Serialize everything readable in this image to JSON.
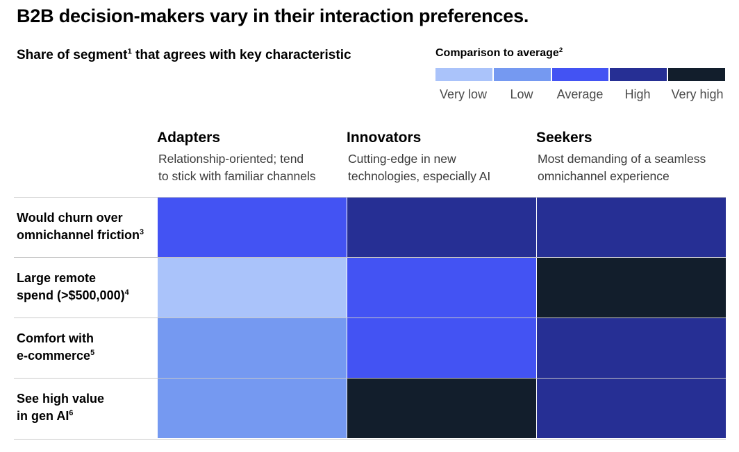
{
  "title": "B2B decision-makers vary in their interaction preferences.",
  "subtitle": {
    "text_before": "Share of segment",
    "footnote": "1",
    "text_after": " that agrees with key characteristic"
  },
  "legend": {
    "title": "Comparison to average",
    "footnote": "2",
    "levels": [
      {
        "label": "Very low",
        "color": "#aac3fa"
      },
      {
        "label": "Low",
        "color": "#7599f1"
      },
      {
        "label": "Average",
        "color": "#4353f3"
      },
      {
        "label": "High",
        "color": "#262f94"
      },
      {
        "label": "Very high",
        "color": "#121e2c"
      }
    ]
  },
  "chart_data": {
    "type": "heatmap",
    "title": "B2B decision-makers vary in their interaction preferences.",
    "subtitle": "Share of segment that agrees with key characteristic",
    "scale": [
      "Very low",
      "Low",
      "Average",
      "High",
      "Very high"
    ],
    "columns": [
      {
        "name": "Adapters",
        "description_line1": "Relationship-oriented; tend",
        "description_line2": "to stick with familiar channels"
      },
      {
        "name": "Innovators",
        "description_line1": "Cutting-edge in new",
        "description_line2": "technologies, especially AI"
      },
      {
        "name": "Seekers",
        "description_line1": "Most demanding of a seamless",
        "description_line2": "omnichannel experience"
      }
    ],
    "rows": [
      {
        "line1": "Would churn over",
        "line2": "omnichannel friction",
        "footnote": "3",
        "values": [
          "Average",
          "High",
          "High"
        ]
      },
      {
        "line1": "Large remote",
        "line2": "spend (>$500,000)",
        "footnote": "4",
        "values": [
          "Very low",
          "Average",
          "Very high"
        ]
      },
      {
        "line1": "Comfort with",
        "line2": "e-commerce",
        "footnote": "5",
        "values": [
          "Low",
          "Average",
          "High"
        ]
      },
      {
        "line1": "See high value",
        "line2": "in gen AI",
        "footnote": "6",
        "values": [
          "Low",
          "Very high",
          "High"
        ]
      }
    ]
  }
}
